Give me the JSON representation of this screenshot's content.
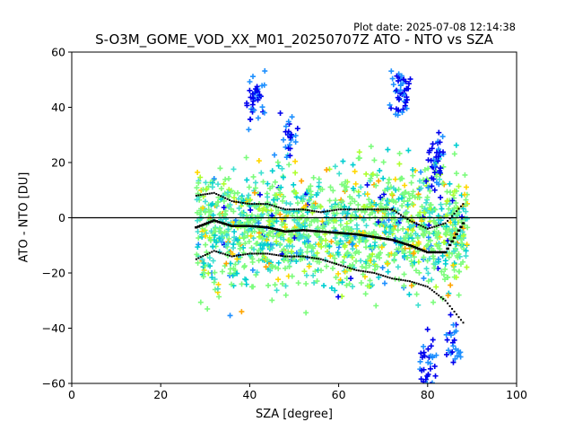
{
  "plot_date": "Plot date: 2025-07-08 12:14:38",
  "chart_data": {
    "type": "scatter",
    "title": "S-O3M_GOME_VOD_XX_M01_20250707Z ATO - NTO vs SZA",
    "xlabel": "SZA [degree]",
    "ylabel": "ATO - NTO [DU]",
    "xlim": [
      0,
      100
    ],
    "ylim": [
      -60,
      60
    ],
    "xticks": [
      "0",
      "20",
      "40",
      "60",
      "80",
      "100"
    ],
    "yticks": [
      "−60",
      "−40",
      "−20",
      "0",
      "20",
      "40",
      "60"
    ],
    "grid": false,
    "zero_line": 0,
    "point_colors": [
      "#0000ee",
      "#1e90ff",
      "#00ced1",
      "#40e0d0",
      "#7cfc7c",
      "#adff2f",
      "#ffd700",
      "#ffa500"
    ],
    "scatter_x_range": [
      28,
      89
    ],
    "mean_profile": {
      "x": [
        28,
        32,
        36,
        40,
        44,
        48,
        52,
        56,
        60,
        64,
        68,
        72,
        76,
        80,
        84,
        88
      ],
      "y": [
        -3.5,
        -1,
        -3,
        -3,
        -3.5,
        -5,
        -4.5,
        -5,
        -5.5,
        -6,
        -7,
        -8,
        -10,
        -12.5,
        -12.5,
        -2
      ]
    },
    "upper_profile": {
      "x": [
        28,
        32,
        36,
        40,
        44,
        48,
        52,
        56,
        60,
        64,
        68,
        72,
        76,
        80,
        84,
        88
      ],
      "y": [
        8,
        9,
        6,
        5,
        5,
        3,
        3,
        2,
        3,
        3,
        3,
        3,
        -1,
        -4,
        -2,
        5
      ]
    },
    "lower_profile": {
      "x": [
        28,
        32,
        36,
        40,
        44,
        48,
        52,
        56,
        60,
        64,
        68,
        72,
        76,
        80,
        84,
        88
      ],
      "y": [
        -15,
        -12,
        -14,
        -13,
        -13,
        -14,
        -14,
        -15,
        -17,
        -19,
        -20,
        -22,
        -23,
        -25,
        -30,
        -38
      ]
    }
  }
}
